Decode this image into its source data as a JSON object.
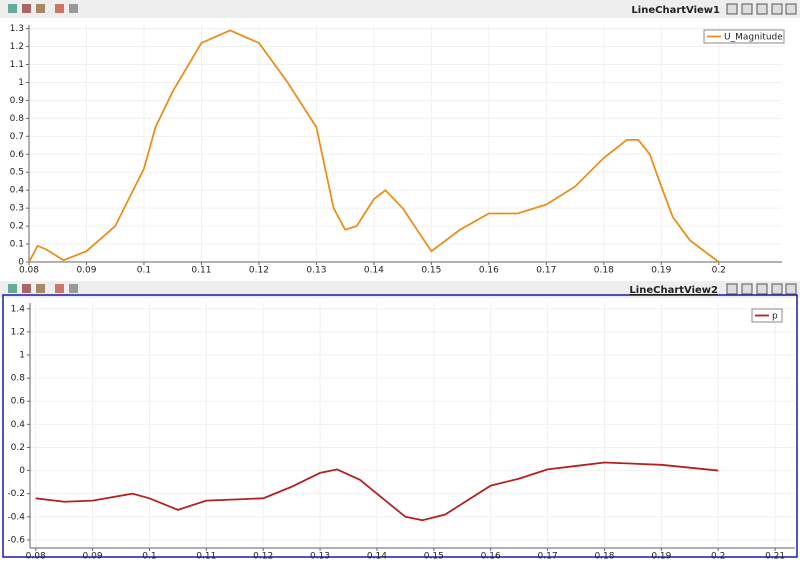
{
  "chart_data": [
    {
      "type": "line",
      "title": "LineChartView1",
      "x": [
        0.08,
        0.0815,
        0.083,
        0.086,
        0.09,
        0.095,
        0.1,
        0.102,
        0.105,
        0.11,
        0.115,
        0.12,
        0.125,
        0.13,
        0.133,
        0.135,
        0.137,
        0.14,
        0.142,
        0.145,
        0.15,
        0.155,
        0.16,
        0.165,
        0.17,
        0.175,
        0.18,
        0.184,
        0.186,
        0.188,
        0.19,
        0.192,
        0.195,
        0.2
      ],
      "series": [
        {
          "name": "U_Magnitude",
          "color": "#e8901c",
          "values": [
            0,
            0.09,
            0.07,
            0.01,
            0.06,
            0.2,
            0.52,
            0.75,
            0.95,
            1.22,
            1.29,
            1.22,
            1.0,
            0.75,
            0.3,
            0.18,
            0.2,
            0.35,
            0.4,
            0.3,
            0.06,
            0.18,
            0.27,
            0.27,
            0.32,
            0.42,
            0.58,
            0.68,
            0.68,
            0.6,
            0.42,
            0.25,
            0.12,
            0
          ]
        }
      ],
      "xlim": [
        0.08,
        0.211
      ],
      "xticks": [
        0.08,
        0.09,
        0.1,
        0.11,
        0.12,
        0.13,
        0.14,
        0.15,
        0.16,
        0.17,
        0.18,
        0.19,
        0.2
      ],
      "ylim": [
        0,
        1.32
      ],
      "yticks": [
        0,
        0.1,
        0.2,
        0.3,
        0.4,
        0.5,
        0.6,
        0.7,
        0.8,
        0.9,
        1,
        1.1,
        1.2,
        1.3
      ],
      "grid": true
    },
    {
      "type": "line",
      "title": "LineChartView2",
      "x": [
        0.08,
        0.085,
        0.09,
        0.097,
        0.1,
        0.105,
        0.11,
        0.115,
        0.12,
        0.125,
        0.13,
        0.133,
        0.137,
        0.14,
        0.145,
        0.148,
        0.152,
        0.16,
        0.165,
        0.17,
        0.175,
        0.18,
        0.185,
        0.19,
        0.2
      ],
      "series": [
        {
          "name": "p",
          "color": "#b22222",
          "values": [
            -0.24,
            -0.27,
            -0.26,
            -0.2,
            -0.24,
            -0.34,
            -0.26,
            -0.25,
            -0.24,
            -0.14,
            -0.02,
            0.01,
            -0.08,
            -0.2,
            -0.4,
            -0.43,
            -0.38,
            -0.13,
            -0.07,
            0.01,
            0.04,
            0.07,
            0.06,
            0.05,
            0
          ]
        }
      ],
      "xlim": [
        0.079,
        0.2135
      ],
      "xticks": [
        0.08,
        0.09,
        0.1,
        0.11,
        0.12,
        0.13,
        0.14,
        0.15,
        0.16,
        0.17,
        0.18,
        0.19,
        0.2,
        0.21
      ],
      "ylim": [
        -0.67,
        1.45
      ],
      "yticks": [
        -0.6,
        -0.4,
        -0.2,
        0,
        0.2,
        0.4,
        0.6,
        0.8,
        1,
        1.2,
        1.4
      ],
      "grid": true
    }
  ]
}
